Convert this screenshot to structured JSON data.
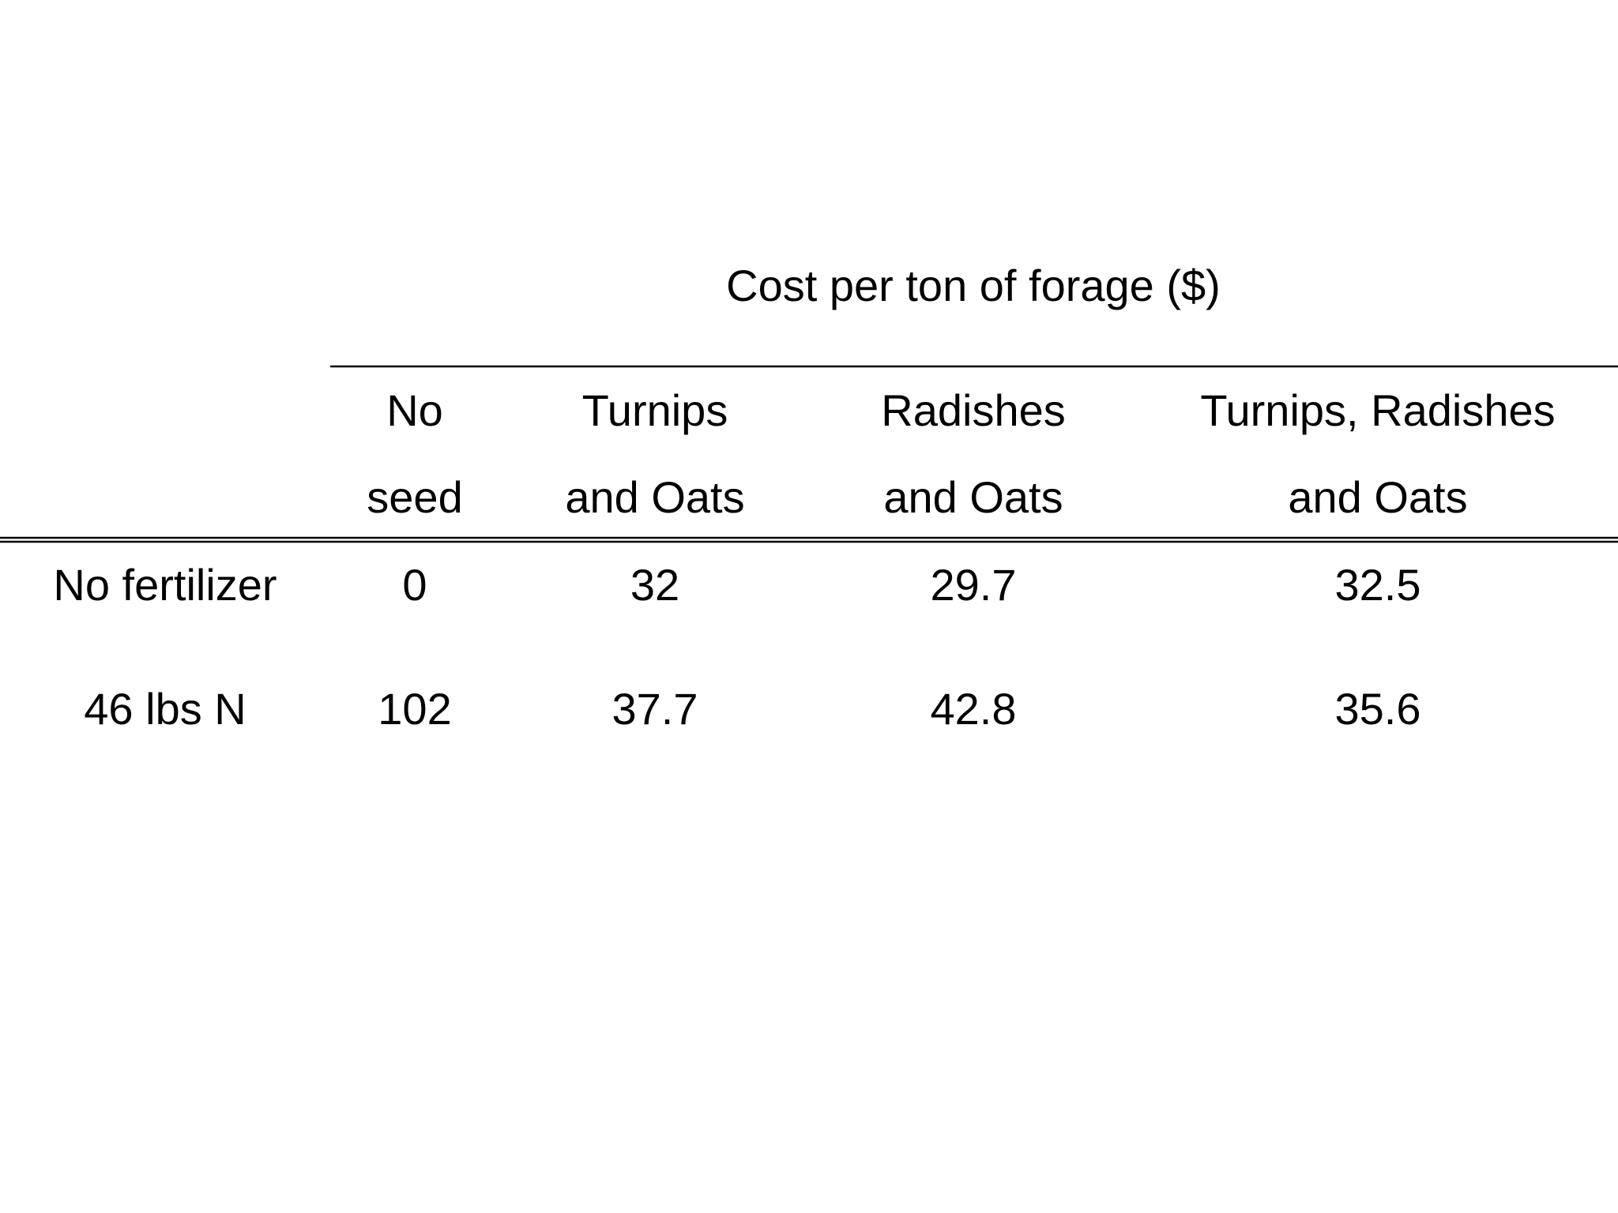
{
  "table": {
    "title": "Cost per ton of forage ($)",
    "headers": [
      [
        "No",
        "seed"
      ],
      [
        "Turnips",
        "and Oats"
      ],
      [
        "Radishes",
        "and Oats"
      ],
      [
        "Turnips, Radishes",
        "and Oats"
      ]
    ],
    "rows": [
      [
        "No fertilizer",
        0,
        32,
        29.7,
        32.5
      ],
      [
        "46 lbs N",
        102,
        37.7,
        42.8,
        35.6
      ]
    ]
  }
}
